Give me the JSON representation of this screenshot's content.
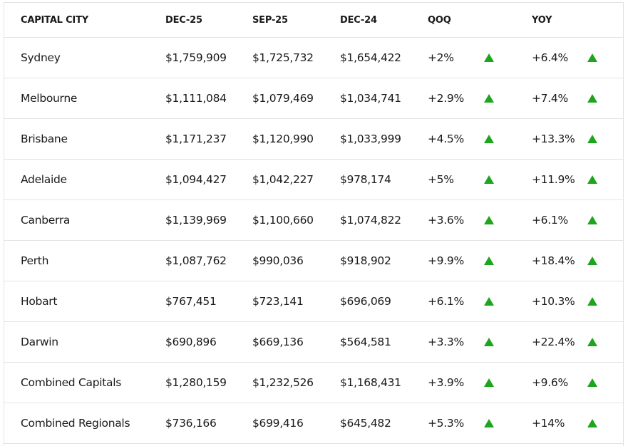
{
  "table": {
    "headers": [
      "CAPITAL CITY",
      "DEC-25",
      "SEP-25",
      "DEC-24",
      "QOQ",
      "YOY"
    ],
    "rows": [
      [
        "Sydney",
        "$1,759,909",
        "$1,725,732",
        "$1,654,422",
        "+2%",
        "+6.4%"
      ],
      [
        "Melbourne",
        "$1,111,084",
        "$1,079,469",
        "$1,034,741",
        "+2.9%",
        "+7.4%"
      ],
      [
        "Brisbane",
        "$1,171,237",
        "$1,120,990",
        "$1,033,999",
        "+4.5%",
        "+13.3%"
      ],
      [
        "Adelaide",
        "$1,094,427",
        "$1,042,227",
        "$978,174",
        "+5%",
        "+11.9%"
      ],
      [
        "Canberra",
        "$1,139,969",
        "$1,100,660",
        "$1,074,822",
        "+3.6%",
        "+6.1%"
      ],
      [
        "Perth",
        "$1,087,762",
        "$990,036",
        "$918,902",
        "+9.9%",
        "+18.4%"
      ],
      [
        "Hobart",
        "$767,451",
        "$723,141",
        "$696,069",
        "+6.1%",
        "+10.3%"
      ],
      [
        "Darwin",
        "$690,896",
        "$669,136",
        "$564,581",
        "+3.3%",
        "+22.4%"
      ],
      [
        "Combined Capitals",
        "$1,280,159",
        "$1,232,526",
        "$1,168,431",
        "+3.9%",
        "+9.6%"
      ],
      [
        "Combined Regionals",
        "$736,166",
        "$699,416",
        "$645,482",
        "+5.3%",
        "+14%"
      ]
    ]
  }
}
